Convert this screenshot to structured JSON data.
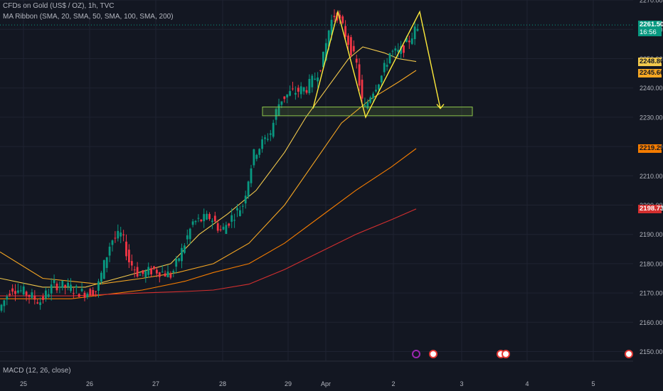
{
  "header": {
    "symbol_line": "CFDs on Gold (US$ / OZ), 1h, TVC",
    "indicator_line": "MA Ribbon (SMA, 20, SMA, 50, SMA, 100, SMA, 200)"
  },
  "macd": {
    "label": "MACD (12, 26, close)"
  },
  "price_tags": [
    {
      "value": "2261.50",
      "sub": "16:56",
      "bg": "#089981",
      "fg": "#ffffff"
    },
    {
      "value": "2248.80",
      "bg": "#f2c94c",
      "fg": "#131722"
    },
    {
      "value": "2245.66",
      "bg": "#f5a623",
      "fg": "#131722"
    },
    {
      "value": "2219.29",
      "bg": "#f57c00",
      "fg": "#131722"
    },
    {
      "value": "2198.73",
      "bg": "#d32f2f",
      "fg": "#ffffff"
    }
  ],
  "events": [
    {
      "name": "lightning-event-icon",
      "color": "#9c27b0"
    },
    {
      "name": "us-flag-event-icon",
      "color": "#e53935"
    },
    {
      "name": "us-flag-event-icon",
      "color": "#e53935"
    },
    {
      "name": "us-flag-event-icon",
      "color": "#e53935"
    },
    {
      "name": "us-flag-event-icon",
      "color": "#e53935"
    }
  ],
  "chart_data": {
    "type": "candlestick",
    "y_axis_ticks": [
      2150,
      2160,
      2170,
      2180,
      2190,
      2200,
      2210,
      2220,
      2230,
      2240,
      2250,
      2260,
      2270
    ],
    "x_axis_ticks": [
      "25",
      "26",
      "27",
      "28",
      "29",
      "Apr",
      "2",
      "3",
      "4",
      "5"
    ],
    "last_price": 2261.5,
    "countdown": "16:56",
    "moving_averages": [
      {
        "name": "SMA 20",
        "color": "#f2c94c",
        "last": 2248.8
      },
      {
        "name": "SMA 50",
        "color": "#f5a623",
        "last": 2245.66
      },
      {
        "name": "SMA 100",
        "color": "#f57c00",
        "last": 2219.29
      },
      {
        "name": "SMA 200",
        "color": "#d32f2f",
        "last": 2198.73
      }
    ],
    "support_zone": [
      2230.5,
      2233.5
    ],
    "double_top": {
      "color": "#ffeb3b",
      "points": [
        [
          "Mar 29",
          2233
        ],
        [
          "Apr 1",
          2266
        ],
        [
          "Apr 1",
          2230
        ],
        [
          "Apr 2",
          2266
        ],
        [
          "Apr 2",
          2233
        ]
      ]
    },
    "colors": {
      "up": "#089981",
      "down": "#f23645",
      "background": "#131722",
      "grid": "#1f2331"
    }
  }
}
